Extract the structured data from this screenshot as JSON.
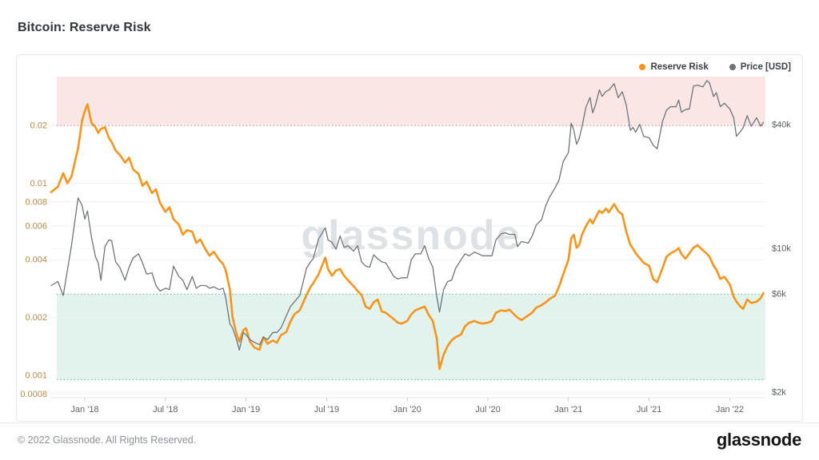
{
  "page": {
    "title": "Bitcoin: Reserve Risk",
    "watermark": "glassnode",
    "footer_copyright": "© 2022 Glassnode. All Rights Reserved.",
    "footer_logo": "glassnode"
  },
  "legend": [
    {
      "label": "Reserve Risk",
      "color": "#f7941c"
    },
    {
      "label": "Price [USD]",
      "color": "#6f747a"
    }
  ],
  "chart_data": {
    "type": "line",
    "title": "Bitcoin: Reserve Risk",
    "x_unit": "months since 2017-11-01 (fractional)",
    "x_axis": {
      "ticks": [
        {
          "t": 2,
          "label": "Jan '18"
        },
        {
          "t": 8,
          "label": "Jul '18"
        },
        {
          "t": 14,
          "label": "Jan '19"
        },
        {
          "t": 20,
          "label": "Jul '19"
        },
        {
          "t": 26,
          "label": "Jan '20"
        },
        {
          "t": 32,
          "label": "Jul '20"
        },
        {
          "t": 38,
          "label": "Jan '21"
        },
        {
          "t": 44,
          "label": "Jul '21"
        },
        {
          "t": 50,
          "label": "Jan '22"
        }
      ]
    },
    "left_axis": {
      "scale": "log",
      "label_color": "#b5894e",
      "range": [
        0.0008,
        0.028
      ],
      "ticks": [
        {
          "v": 0.02,
          "label": "0.02"
        },
        {
          "v": 0.01,
          "label": "0.01"
        },
        {
          "v": 0.008,
          "label": "0.008"
        },
        {
          "v": 0.006,
          "label": "0.006"
        },
        {
          "v": 0.004,
          "label": "0.004"
        },
        {
          "v": 0.002,
          "label": "0.002"
        },
        {
          "v": 0.001,
          "label": "0.001"
        },
        {
          "v": 0.0008,
          "label": "0.0008"
        }
      ]
    },
    "right_axis": {
      "scale": "log",
      "unit": "USD (thousands)",
      "label_color": "#565b60",
      "range": [
        2,
        70
      ],
      "ticks": [
        {
          "v": 40,
          "label": "$40k"
        },
        {
          "v": 10,
          "label": "$10k"
        },
        {
          "v": 6,
          "label": "$6k"
        },
        {
          "v": 2,
          "label": "$2k"
        }
      ]
    },
    "bands": [
      {
        "name": "overvalued-zone",
        "axis": "left",
        "from": 0.02,
        "to": "top",
        "fill": "#fae7e5",
        "edge_color": "#e36a5f"
      },
      {
        "name": "undervalued-zone",
        "axis": "left",
        "from": 0.00095,
        "to": 0.00265,
        "fill": "#e2f2ec",
        "edge_color": "#5eb99c"
      }
    ],
    "grid": true,
    "legend_position": "top-right",
    "t": [
      -0.5,
      0,
      0.4,
      0.7,
      1,
      1.5,
      1.8,
      2,
      2.2,
      2.5,
      2.8,
      3,
      3.2,
      3.5,
      3.8,
      4,
      4.3,
      4.6,
      5,
      5.3,
      5.6,
      6,
      6.3,
      6.6,
      7,
      7.3,
      7.6,
      8,
      8.3,
      8.6,
      9,
      9.3,
      9.6,
      10,
      10.3,
      10.6,
      11,
      11.3,
      11.6,
      12,
      12.3,
      12.5,
      12.8,
      13,
      13.3,
      13.5,
      13.8,
      14,
      14.3,
      14.6,
      15,
      15.3,
      15.6,
      16,
      16.3,
      16.6,
      17,
      17.3,
      17.6,
      18,
      18.5,
      18.8,
      19,
      19.4,
      19.9,
      20.1,
      20.4,
      20.7,
      21,
      21.3,
      21.6,
      22,
      22.3,
      22.6,
      22.9,
      23.2,
      23.5,
      23.8,
      24.1,
      24.4,
      25,
      25.3,
      25.6,
      26,
      26.3,
      26.6,
      27,
      27.3,
      27.6,
      27.9,
      28.2,
      28.4,
      28.7,
      29,
      29.3,
      29.6,
      30,
      30.3,
      30.6,
      31,
      31.3,
      31.6,
      32,
      32.3,
      32.6,
      33,
      33.3,
      33.6,
      34,
      34.2,
      34.5,
      35,
      35.3,
      35.6,
      36,
      36.3,
      36.6,
      37,
      37.3,
      37.6,
      38,
      38.2,
      38.4,
      38.6,
      38.8,
      39,
      39.3,
      39.6,
      39.8,
      40,
      40.3,
      40.5,
      40.8,
      41,
      41.4,
      41.7,
      42,
      42.3,
      42.6,
      42.8,
      43,
      43.3,
      43.6,
      44,
      44.3,
      44.6,
      45,
      45.3,
      45.6,
      46,
      46.2,
      46.4,
      46.7,
      47,
      47.3,
      47.6,
      48,
      48.3,
      48.5,
      48.8,
      49,
      49.3,
      49.6,
      50,
      50.3,
      50.5,
      50.8,
      51,
      51.3,
      51.6,
      52,
      52.3,
      52.5
    ],
    "series": [
      {
        "name": "Reserve Risk",
        "axis": "left",
        "color": "#f7941c",
        "width": 2.6,
        "values": [
          0.009,
          0.0096,
          0.0113,
          0.01,
          0.0108,
          0.0152,
          0.0212,
          0.0237,
          0.0258,
          0.0206,
          0.0196,
          0.0183,
          0.0192,
          0.0196,
          0.0172,
          0.0164,
          0.0148,
          0.0141,
          0.0128,
          0.0136,
          0.0118,
          0.0112,
          0.0097,
          0.0102,
          0.0089,
          0.0093,
          0.0079,
          0.0071,
          0.0075,
          0.0065,
          0.0061,
          0.0054,
          0.0057,
          0.0056,
          0.0049,
          0.0051,
          0.0045,
          0.0042,
          0.0044,
          0.004,
          0.0038,
          0.0035,
          0.0028,
          0.002,
          0.00164,
          0.0015,
          0.00172,
          0.00176,
          0.0015,
          0.0014,
          0.00136,
          0.00158,
          0.00146,
          0.00152,
          0.00148,
          0.00162,
          0.00168,
          0.0019,
          0.00208,
          0.00218,
          0.00262,
          0.00288,
          0.00302,
          0.00335,
          0.0041,
          0.00358,
          0.0033,
          0.00352,
          0.00358,
          0.0033,
          0.00312,
          0.00292,
          0.00275,
          0.00262,
          0.00228,
          0.00222,
          0.0024,
          0.00248,
          0.00215,
          0.00212,
          0.00196,
          0.00188,
          0.00186,
          0.00192,
          0.00208,
          0.00218,
          0.00224,
          0.00228,
          0.00206,
          0.00192,
          0.00155,
          0.00108,
          0.00128,
          0.00142,
          0.00152,
          0.00158,
          0.00163,
          0.0018,
          0.00188,
          0.00192,
          0.00188,
          0.00186,
          0.00188,
          0.00192,
          0.00212,
          0.00218,
          0.00216,
          0.0022,
          0.00206,
          0.002,
          0.00194,
          0.00205,
          0.00212,
          0.00225,
          0.00232,
          0.0024,
          0.0025,
          0.0026,
          0.0029,
          0.00335,
          0.004,
          0.00518,
          0.0054,
          0.00462,
          0.00478,
          0.0054,
          0.00598,
          0.0065,
          0.00618,
          0.0066,
          0.0072,
          0.007,
          0.00738,
          0.00705,
          0.0078,
          0.00715,
          0.0069,
          0.0056,
          0.00478,
          0.00458,
          0.00432,
          0.00408,
          0.00385,
          0.00372,
          0.00318,
          0.00305,
          0.00362,
          0.00415,
          0.00432,
          0.00447,
          0.0046,
          0.00428,
          0.00405,
          0.00432,
          0.00462,
          0.00476,
          0.00448,
          0.0043,
          0.00414,
          0.00372,
          0.00356,
          0.00318,
          0.00326,
          0.00298,
          0.00256,
          0.00242,
          0.00228,
          0.00222,
          0.00248,
          0.00238,
          0.00242,
          0.00252,
          0.00268
        ]
      },
      {
        "name": "Price [USD]",
        "axis": "right",
        "color": "#6f747a",
        "width": 1.3,
        "unit": "k",
        "values": [
          6.6,
          6.9,
          5.9,
          7.8,
          10.2,
          17.6,
          16.2,
          13.9,
          15.2,
          11.3,
          9.1,
          8.5,
          7.0,
          10.2,
          11.0,
          10.9,
          8.6,
          8.1,
          7.0,
          8.1,
          9.0,
          9.4,
          8.5,
          7.5,
          7.6,
          6.6,
          6.2,
          6.4,
          6.3,
          8.2,
          7.3,
          7.0,
          6.3,
          7.3,
          6.4,
          6.6,
          6.6,
          6.4,
          6.5,
          6.3,
          6.4,
          5.7,
          4.3,
          4.1,
          3.6,
          3.2,
          3.9,
          3.8,
          3.6,
          3.5,
          3.4,
          3.7,
          3.6,
          3.9,
          3.9,
          4.1,
          4.7,
          5.2,
          5.5,
          5.9,
          8.0,
          8.6,
          8.9,
          11.1,
          12.6,
          11.0,
          10.7,
          9.9,
          11.5,
          10.1,
          10.3,
          9.7,
          10.3,
          8.6,
          8.2,
          8.1,
          9.3,
          8.9,
          8.6,
          8.5,
          7.3,
          7.1,
          7.2,
          7.2,
          8.8,
          9.4,
          9.4,
          10.3,
          8.9,
          8.1,
          5.8,
          4.9,
          6.3,
          6.9,
          7.0,
          8.0,
          8.8,
          9.4,
          9.2,
          9.6,
          9.4,
          9.2,
          9.2,
          9.2,
          11.0,
          11.8,
          11.9,
          11.7,
          11.7,
          10.2,
          10.8,
          10.6,
          11.5,
          13.0,
          13.8,
          16.1,
          17.8,
          19.7,
          21.5,
          26.4,
          29.3,
          40.6,
          37.5,
          32.1,
          34.3,
          38.9,
          48.6,
          54.2,
          45.6,
          49.6,
          59.0,
          54.9,
          58.0,
          58.8,
          63.2,
          54.0,
          57.8,
          49.9,
          37.5,
          38.8,
          36.7,
          40.1,
          35.0,
          34.5,
          31.8,
          30.5,
          41.5,
          47.0,
          48.9,
          48.8,
          52.6,
          46.0,
          47.3,
          47.7,
          61.5,
          62.2,
          61.0,
          65.5,
          63.6,
          54.7,
          57.2,
          48.9,
          50.8,
          47.7,
          43.1,
          35.1,
          37.0,
          38.7,
          44.2,
          39.2,
          43.2,
          39.3,
          41.0
        ]
      }
    ]
  }
}
